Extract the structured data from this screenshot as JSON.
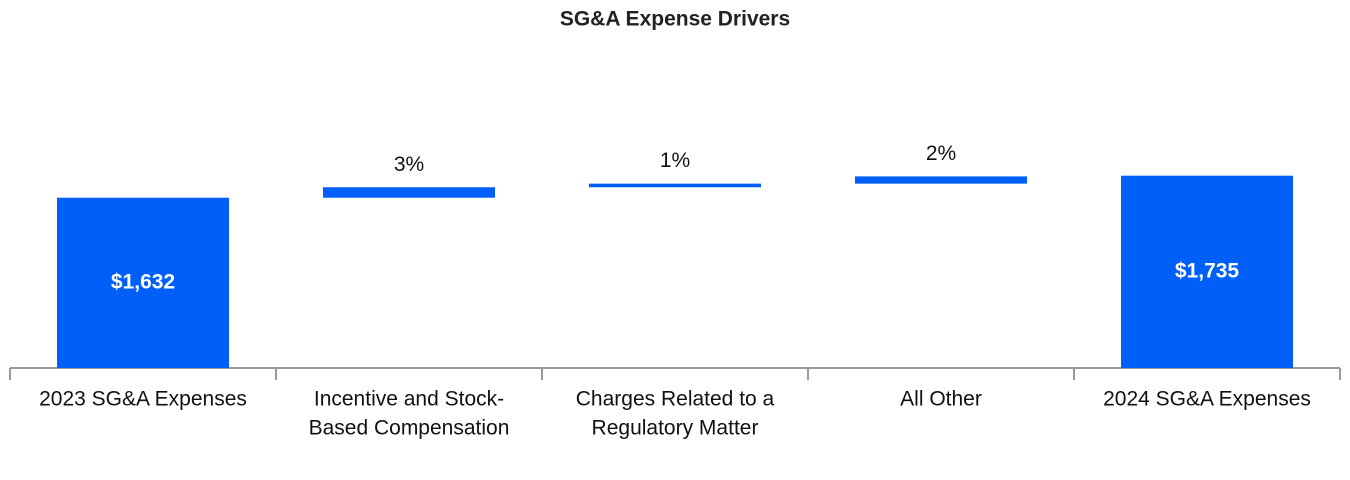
{
  "chart_data": {
    "type": "waterfall",
    "title": "SG&A Expense Drivers",
    "categories": [
      [
        "2023 SG&A Expenses"
      ],
      [
        "Incentive and Stock-",
        "Based Compensation"
      ],
      [
        "Charges Related to a",
        "Regulatory Matter"
      ],
      [
        "All Other"
      ],
      [
        "2024 SG&A Expenses"
      ]
    ],
    "totals": {
      "indices": [
        0,
        4
      ],
      "values": [
        1632,
        1735
      ],
      "value_labels": [
        "$1,632",
        "$1,735"
      ]
    },
    "changes": {
      "indices": [
        1,
        2,
        3
      ],
      "values": [
        3,
        1,
        2
      ],
      "value_labels": [
        "3%",
        "1%",
        "2%"
      ]
    },
    "color": "#005ff9",
    "ylim": [
      836,
      2000
    ]
  }
}
